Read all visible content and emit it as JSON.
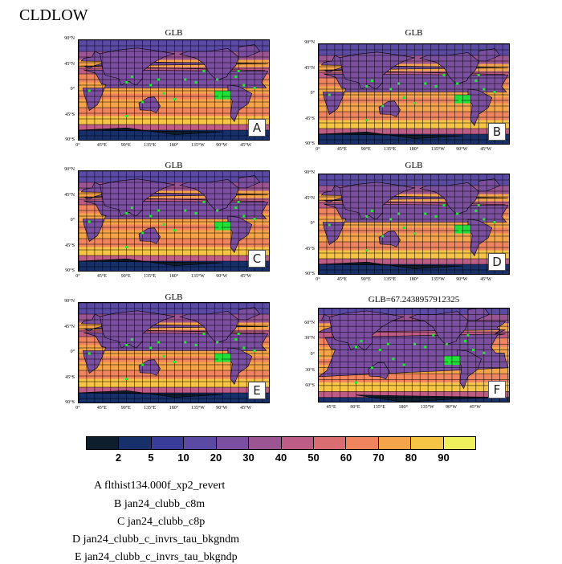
{
  "title": "CLDLOW",
  "panels": [
    {
      "id": "A",
      "title": "GLB"
    },
    {
      "id": "B",
      "title": "GLB"
    },
    {
      "id": "C",
      "title": "GLB"
    },
    {
      "id": "D",
      "title": "GLB"
    },
    {
      "id": "E",
      "title": "GLB"
    },
    {
      "id": "F",
      "title": "GLB=67.2438957912325"
    }
  ],
  "lat_labels": [
    "90°N",
    "45°N",
    "0°",
    "45°S",
    "90°S"
  ],
  "lat_labels_f": [
    "60°N",
    "30°N",
    "0°",
    "30°S",
    "60°S"
  ],
  "lon_labels": [
    "0°",
    "45°E",
    "90°E",
    "135°E",
    "180°",
    "135°W",
    "90°W",
    "45°W"
  ],
  "lon_labels_f": [
    "45°E",
    "90°E",
    "135°E",
    "180°",
    "135°W",
    "90°W",
    "45°W"
  ],
  "colorbar": {
    "levels": [
      "2",
      "5",
      "10",
      "20",
      "30",
      "40",
      "50",
      "60",
      "70",
      "80",
      "90"
    ],
    "colors": [
      "#0f1e2d",
      "#17306a",
      "#3a3c9a",
      "#5a4aa4",
      "#7a4f9f",
      "#9c5593",
      "#bd5c84",
      "#da6d72",
      "#ef845e",
      "#f6a44a",
      "#f7c545",
      "#eef05c"
    ]
  },
  "legend": [
    "A  flthist134.000f_xp2_revert",
    "B  jan24_clubb_c8m",
    "C  jan24_clubb_c8p",
    "D  jan24_clubb_c_invrs_tau_bkgndm",
    "E  jan24_clubb_c_invrs_tau_bkgndp"
  ]
}
